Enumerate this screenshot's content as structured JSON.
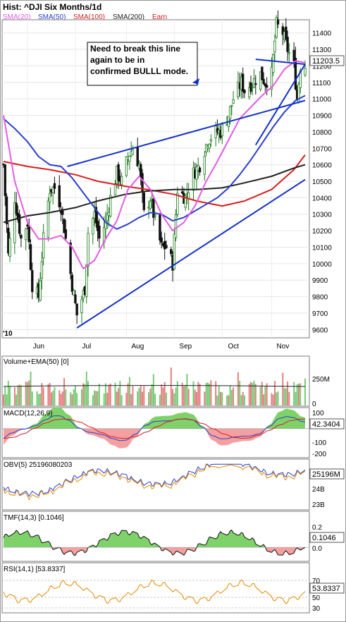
{
  "title": "Hist: ^DJI Six Months/1d",
  "legend": [
    {
      "label": "SMA(20)",
      "color": "#e55be0"
    },
    {
      "label": "SMA(50)",
      "color": "#2a3fcc"
    },
    {
      "label": "SMA(100)",
      "color": "#d81e1e"
    },
    {
      "label": "SMA(200)",
      "color": "#222222"
    },
    {
      "label": "Earn",
      "color": "#d81e1e"
    }
  ],
  "annotation": "Need to break this line\nagain to be in\nconfirmed BULLL mode.",
  "year_label": "'10",
  "colors": {
    "up": "#1a7a1a",
    "down": "#111111",
    "trend": "#1330c8",
    "macd_up": "#7fd26a",
    "macd_down": "#f4a0a0",
    "frame": "#7a7a7a"
  },
  "chart_data": [
    {
      "type": "candlestick",
      "title": "Hist: ^DJI Six Months/1d",
      "x_ticks": [
        "Jun",
        "Jul",
        "Aug",
        "Sep",
        "Oct",
        "Nov"
      ],
      "y_ticks": [
        9600,
        9700,
        9800,
        9900,
        10000,
        10100,
        10200,
        10300,
        10400,
        10500,
        10600,
        10700,
        10800,
        10900,
        11000,
        11100,
        11200,
        11300,
        11400
      ],
      "ylim": [
        9550,
        11480
      ],
      "last_value": "11203.5",
      "close_path": [
        [
          "May 17",
          10600
        ],
        [
          "May 20",
          10050
        ],
        [
          "May 24",
          10400
        ],
        [
          "May 28",
          10150
        ],
        [
          "Jun 1",
          10250
        ],
        [
          "Jun 4",
          9870
        ],
        [
          "Jun 8",
          9800
        ],
        [
          "Jun 11",
          10150
        ],
        [
          "Jun 15",
          10450
        ],
        [
          "Jun 18",
          10460
        ],
        [
          "Jun 22",
          10350
        ],
        [
          "Jun 25",
          10150
        ],
        [
          "Jun 29",
          9870
        ],
        [
          "Jul 2",
          9690
        ],
        [
          "Jul 7",
          9850
        ],
        [
          "Jul 9",
          10190
        ],
        [
          "Jul 13",
          10300
        ],
        [
          "Jul 16",
          10150
        ],
        [
          "Jul 20",
          10250
        ],
        [
          "Jul 23",
          10400
        ],
        [
          "Jul 27",
          10550
        ],
        [
          "Jul 30",
          10500
        ],
        [
          "Aug 3",
          10650
        ],
        [
          "Aug 6",
          10700
        ],
        [
          "Aug 10",
          10600
        ],
        [
          "Aug 13",
          10300
        ],
        [
          "Aug 17",
          10400
        ],
        [
          "Aug 20",
          10250
        ],
        [
          "Aug 24",
          10100
        ],
        [
          "Aug 27",
          10100
        ],
        [
          "Aug 31",
          10000
        ],
        [
          "Sep 3",
          10450
        ],
        [
          "Sep 8",
          10400
        ],
        [
          "Sep 13",
          10550
        ],
        [
          "Sep 17",
          10600
        ],
        [
          "Sep 22",
          10750
        ],
        [
          "Sep 27",
          10800
        ],
        [
          "Sep 30",
          10800
        ],
        [
          "Oct 5",
          10900
        ],
        [
          "Oct 8",
          11000
        ],
        [
          "Oct 13",
          11100
        ],
        [
          "Oct 15",
          11050
        ],
        [
          "Oct 20",
          11100
        ],
        [
          "Oct 25",
          11150
        ],
        [
          "Oct 28",
          11100
        ],
        [
          "Nov 1",
          11150
        ],
        [
          "Nov 4",
          11450
        ],
        [
          "Nov 8",
          11400
        ],
        [
          "Nov 11",
          11300
        ],
        [
          "Nov 15",
          11200
        ],
        [
          "Nov 17",
          11000
        ],
        [
          "Nov 19",
          11200
        ],
        [
          "Nov 22",
          11200
        ]
      ],
      "sma20_path": [
        [
          "May 17",
          10900
        ],
        [
          "May 24",
          10500
        ],
        [
          "Jun 1",
          10250
        ],
        [
          "Jun 8",
          10150
        ],
        [
          "Jun 15",
          10150
        ],
        [
          "Jun 22",
          10170
        ],
        [
          "Jun 29",
          10100
        ],
        [
          "Jul 6",
          9970
        ],
        [
          "Jul 13",
          10020
        ],
        [
          "Jul 20",
          10150
        ],
        [
          "Jul 27",
          10260
        ],
        [
          "Aug 3",
          10450
        ],
        [
          "Aug 10",
          10530
        ],
        [
          "Aug 17",
          10450
        ],
        [
          "Aug 24",
          10300
        ],
        [
          "Aug 31",
          10200
        ],
        [
          "Sep 7",
          10250
        ],
        [
          "Sep 14",
          10350
        ],
        [
          "Sep 21",
          10500
        ],
        [
          "Sep 28",
          10620
        ],
        [
          "Oct 5",
          10750
        ],
        [
          "Oct 12",
          10880
        ],
        [
          "Oct 19",
          10950
        ],
        [
          "Oct 26",
          11020
        ],
        [
          "Nov 2",
          11080
        ],
        [
          "Nov 9",
          11180
        ],
        [
          "Nov 16",
          11230
        ],
        [
          "Nov 22",
          11220
        ]
      ],
      "sma50_path": [
        [
          "May 17",
          10880
        ],
        [
          "May 24",
          10820
        ],
        [
          "Jun 1",
          10740
        ],
        [
          "Jun 8",
          10650
        ],
        [
          "Jun 15",
          10600
        ],
        [
          "Jun 22",
          10590
        ],
        [
          "Jun 29",
          10520
        ],
        [
          "Jul 6",
          10430
        ],
        [
          "Jul 13",
          10340
        ],
        [
          "Jul 20",
          10250
        ],
        [
          "Jul 27",
          10210
        ],
        [
          "Aug 3",
          10240
        ],
        [
          "Aug 10",
          10280
        ],
        [
          "Aug 17",
          10310
        ],
        [
          "Aug 24",
          10300
        ],
        [
          "Aug 31",
          10260
        ],
        [
          "Sep 7",
          10280
        ],
        [
          "Sep 14",
          10320
        ],
        [
          "Sep 21",
          10360
        ],
        [
          "Sep 28",
          10400
        ],
        [
          "Oct 5",
          10460
        ],
        [
          "Oct 12",
          10540
        ],
        [
          "Oct 19",
          10630
        ],
        [
          "Oct 26",
          10730
        ],
        [
          "Nov 2",
          10830
        ],
        [
          "Nov 9",
          10920
        ],
        [
          "Nov 16",
          10990
        ],
        [
          "Nov 22",
          11020
        ]
      ],
      "sma100_path": [
        [
          "May 17",
          10620
        ],
        [
          "Jun 1",
          10590
        ],
        [
          "Jun 15",
          10570
        ],
        [
          "Jul 1",
          10540
        ],
        [
          "Jul 15",
          10500
        ],
        [
          "Aug 1",
          10470
        ],
        [
          "Aug 15",
          10450
        ],
        [
          "Sep 1",
          10420
        ],
        [
          "Sep 15",
          10380
        ],
        [
          "Oct 1",
          10350
        ],
        [
          "Oct 15",
          10380
        ],
        [
          "Nov 1",
          10450
        ],
        [
          "Nov 15",
          10570
        ],
        [
          "Nov 22",
          10660
        ]
      ],
      "sma200_path": [
        [
          "May 17",
          10250
        ],
        [
          "Jun 1",
          10290
        ],
        [
          "Jun 15",
          10310
        ],
        [
          "Jul 1",
          10340
        ],
        [
          "Jul 15",
          10380
        ],
        [
          "Aug 1",
          10420
        ],
        [
          "Aug 15",
          10440
        ],
        [
          "Sep 1",
          10450
        ],
        [
          "Sep 15",
          10450
        ],
        [
          "Oct 1",
          10460
        ],
        [
          "Oct 15",
          10490
        ],
        [
          "Nov 1",
          10530
        ],
        [
          "Nov 15",
          10580
        ],
        [
          "Nov 22",
          10600
        ]
      ],
      "trendlines": [
        {
          "from": [
            "Jun 26",
            10590
          ],
          "to": [
            "Nov 22",
            10990
          ]
        },
        {
          "from": [
            "Oct 22",
            10720
          ],
          "to": [
            "Nov 22",
            11210
          ]
        },
        {
          "from": [
            "Oct 22",
            11240
          ],
          "to": [
            "Nov 22",
            11210
          ]
        },
        {
          "from": [
            "Jul 2",
            9610
          ],
          "to": [
            "Nov 22",
            10510
          ]
        }
      ]
    },
    {
      "type": "bar",
      "title": "Volume+EMA(50)",
      "param": "[0]",
      "y_ticks": [
        "250M",
        "0"
      ]
    },
    {
      "type": "area",
      "title": "MACD(12,26,9)",
      "last_value": "42.3404",
      "y_ticks": [
        100,
        0,
        -100,
        -200
      ],
      "ylim": [
        -230,
        150
      ]
    },
    {
      "type": "line",
      "title": "OBV(5)",
      "param": "25196080203",
      "last_value": "25196M",
      "y_ticks": [
        "24B",
        "23B"
      ]
    },
    {
      "type": "area",
      "title": "TMF(14,3)",
      "param": "[0.1046]",
      "last_value": "0.1046",
      "y_ticks": [
        0.2,
        0.1,
        0.0
      ]
    },
    {
      "type": "line",
      "title": "RSI(14,1)",
      "param": "[53.8337]",
      "last_value": "53.8337",
      "y_ticks": [
        70,
        50,
        30
      ]
    }
  ]
}
